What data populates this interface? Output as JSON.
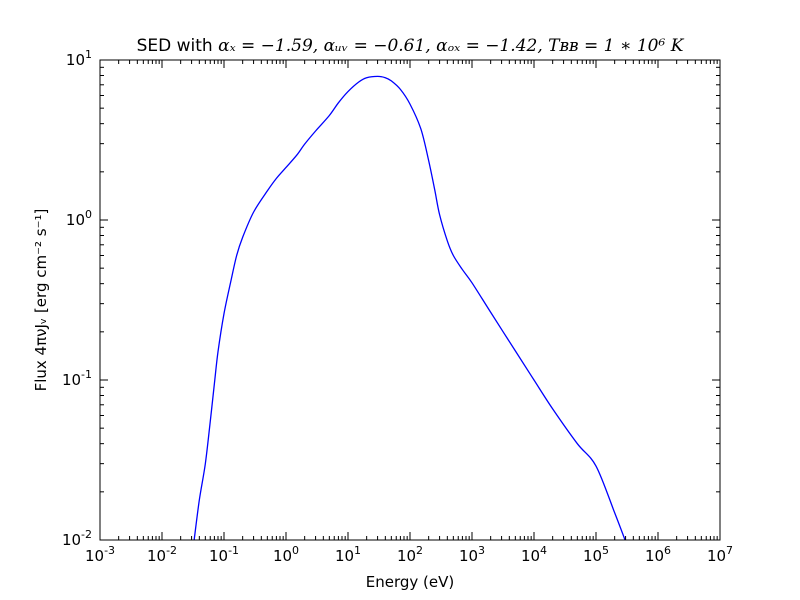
{
  "chart_data": {
    "type": "line",
    "title": {
      "prefix": "SED with ",
      "formula": "αₓ = −1.59, αᵤᵥ = −0.61, αₒₓ = −1.42, Tʙʙ = 1 ∗ 10⁶ K"
    },
    "xlabel": "Energy (eV)",
    "ylabel": "Flux 4πνJᵥ [erg  cm⁻² s⁻¹]",
    "xscale": "log",
    "yscale": "log",
    "xlim": [
      0.001,
      10000000
    ],
    "ylim": [
      0.01,
      10
    ],
    "grid": false,
    "x_ticks": [
      {
        "value": 0.001,
        "base": "10",
        "exp": "-3"
      },
      {
        "value": 0.01,
        "base": "10",
        "exp": "-2"
      },
      {
        "value": 0.1,
        "base": "10",
        "exp": "-1"
      },
      {
        "value": 1,
        "base": "10",
        "exp": "0"
      },
      {
        "value": 10,
        "base": "10",
        "exp": "1"
      },
      {
        "value": 100,
        "base": "10",
        "exp": "2"
      },
      {
        "value": 1000,
        "base": "10",
        "exp": "3"
      },
      {
        "value": 10000,
        "base": "10",
        "exp": "4"
      },
      {
        "value": 100000,
        "base": "10",
        "exp": "5"
      },
      {
        "value": 1000000,
        "base": "10",
        "exp": "6"
      },
      {
        "value": 10000000,
        "base": "10",
        "exp": "7"
      }
    ],
    "y_ticks": [
      {
        "value": 0.01,
        "base": "10",
        "exp": "-2"
      },
      {
        "value": 0.1,
        "base": "10",
        "exp": "-1"
      },
      {
        "value": 1,
        "base": "10",
        "exp": "0"
      },
      {
        "value": 10,
        "base": "10",
        "exp": "1"
      }
    ],
    "series": [
      {
        "color": "#0000ff",
        "x": [
          0.033,
          0.04,
          0.05,
          0.06,
          0.07,
          0.08,
          0.1,
          0.13,
          0.16,
          0.2,
          0.3,
          0.5,
          0.7,
          1,
          1.5,
          2,
          3,
          5,
          7,
          10,
          15,
          20,
          30,
          40,
          50,
          70,
          100,
          150,
          200,
          250,
          300,
          400,
          500,
          700,
          1000,
          2000,
          5000,
          10000,
          20000,
          50000,
          100000,
          200000,
          300000
        ],
        "y": [
          0.01,
          0.0178,
          0.03,
          0.055,
          0.095,
          0.15,
          0.26,
          0.42,
          0.6,
          0.78,
          1.12,
          1.52,
          1.82,
          2.13,
          2.55,
          2.98,
          3.6,
          4.5,
          5.4,
          6.35,
          7.3,
          7.75,
          7.9,
          7.75,
          7.4,
          6.55,
          5.3,
          3.7,
          2.35,
          1.55,
          1.08,
          0.74,
          0.6,
          0.49,
          0.405,
          0.265,
          0.152,
          0.1,
          0.066,
          0.04,
          0.029,
          0.0148,
          0.0098
        ]
      }
    ]
  }
}
